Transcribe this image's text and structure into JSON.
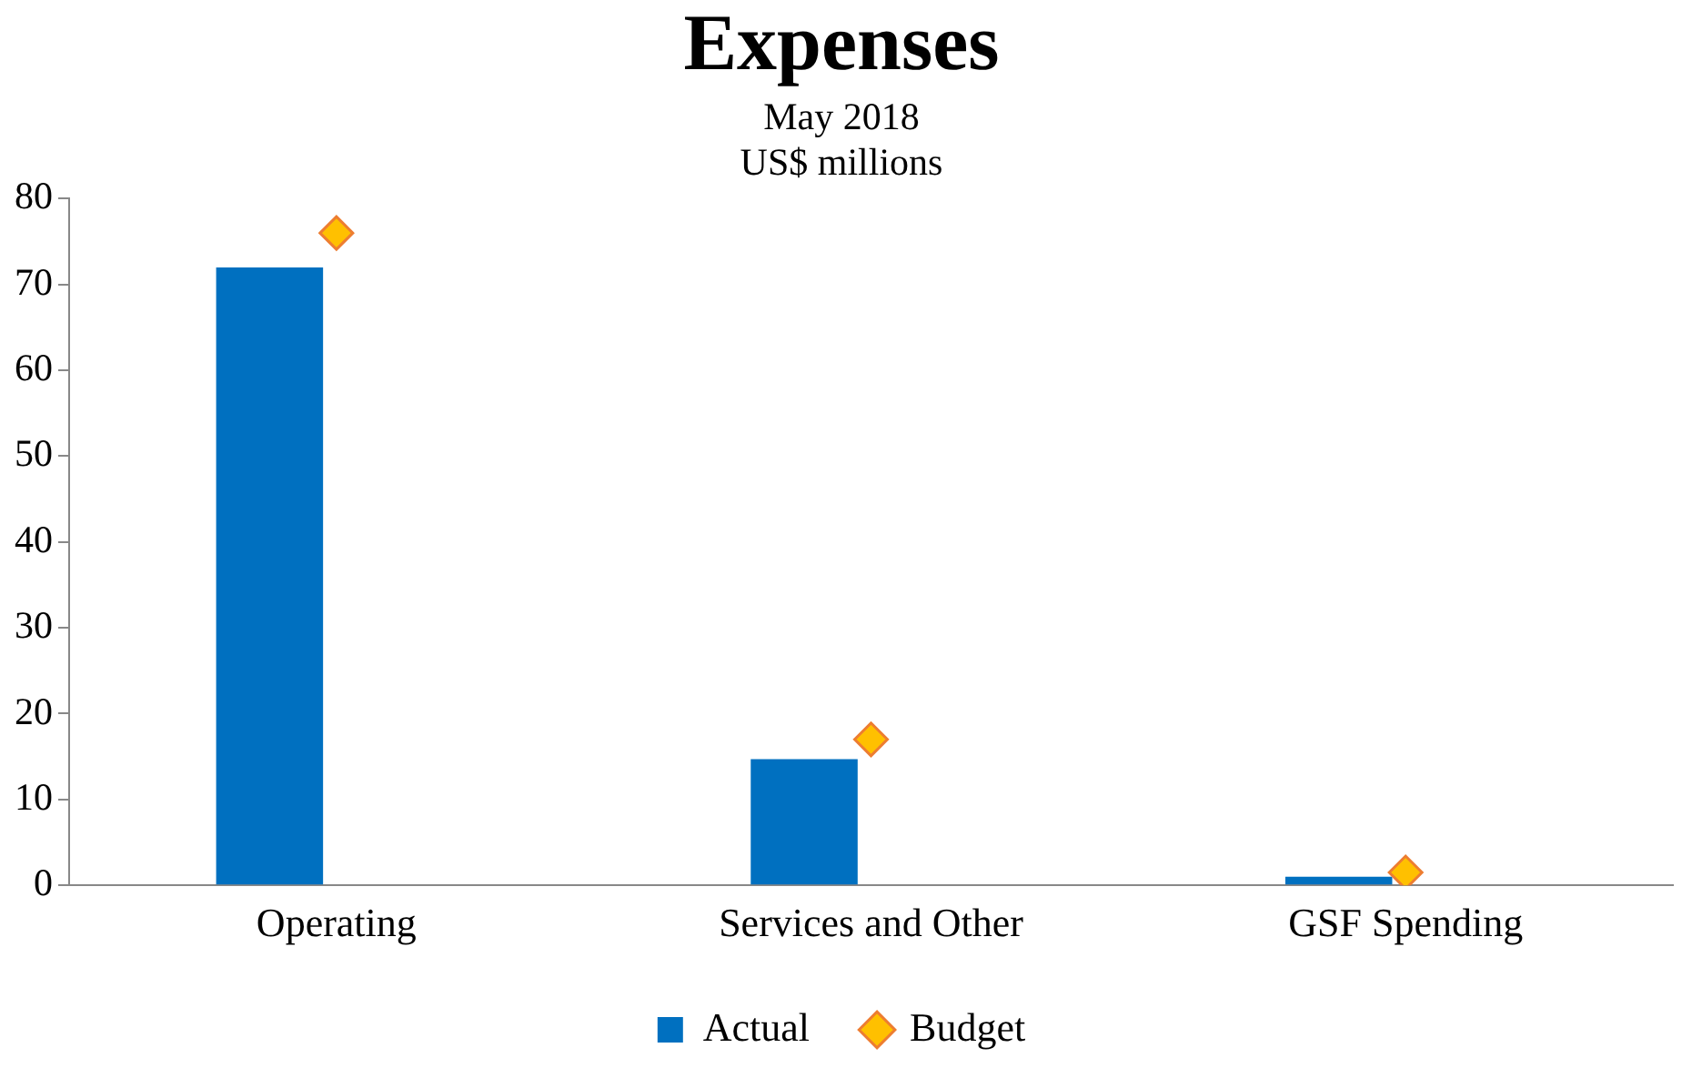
{
  "chart_data": {
    "type": "bar",
    "title": "Expenses",
    "subtitle": "May 2018\nUS$ millions",
    "categories": [
      "Operating",
      "Services and Other",
      "GSF Spending"
    ],
    "series": [
      {
        "name": "Actual",
        "color": "#0070c0",
        "values": [
          72,
          14.7,
          1
        ]
      },
      {
        "name": "Budget",
        "type": "scatter",
        "color": "#ffc000",
        "x": [
          "Operating",
          "Services and Other",
          "GSF Spending"
        ],
        "values": [
          76,
          17,
          1.5
        ],
        "marker": "diamond"
      }
    ],
    "ylim": [
      0,
      80
    ],
    "yticks": [
      0,
      10,
      20,
      30,
      40,
      50,
      60,
      70,
      80
    ],
    "grid": false,
    "legend": "bottom"
  }
}
